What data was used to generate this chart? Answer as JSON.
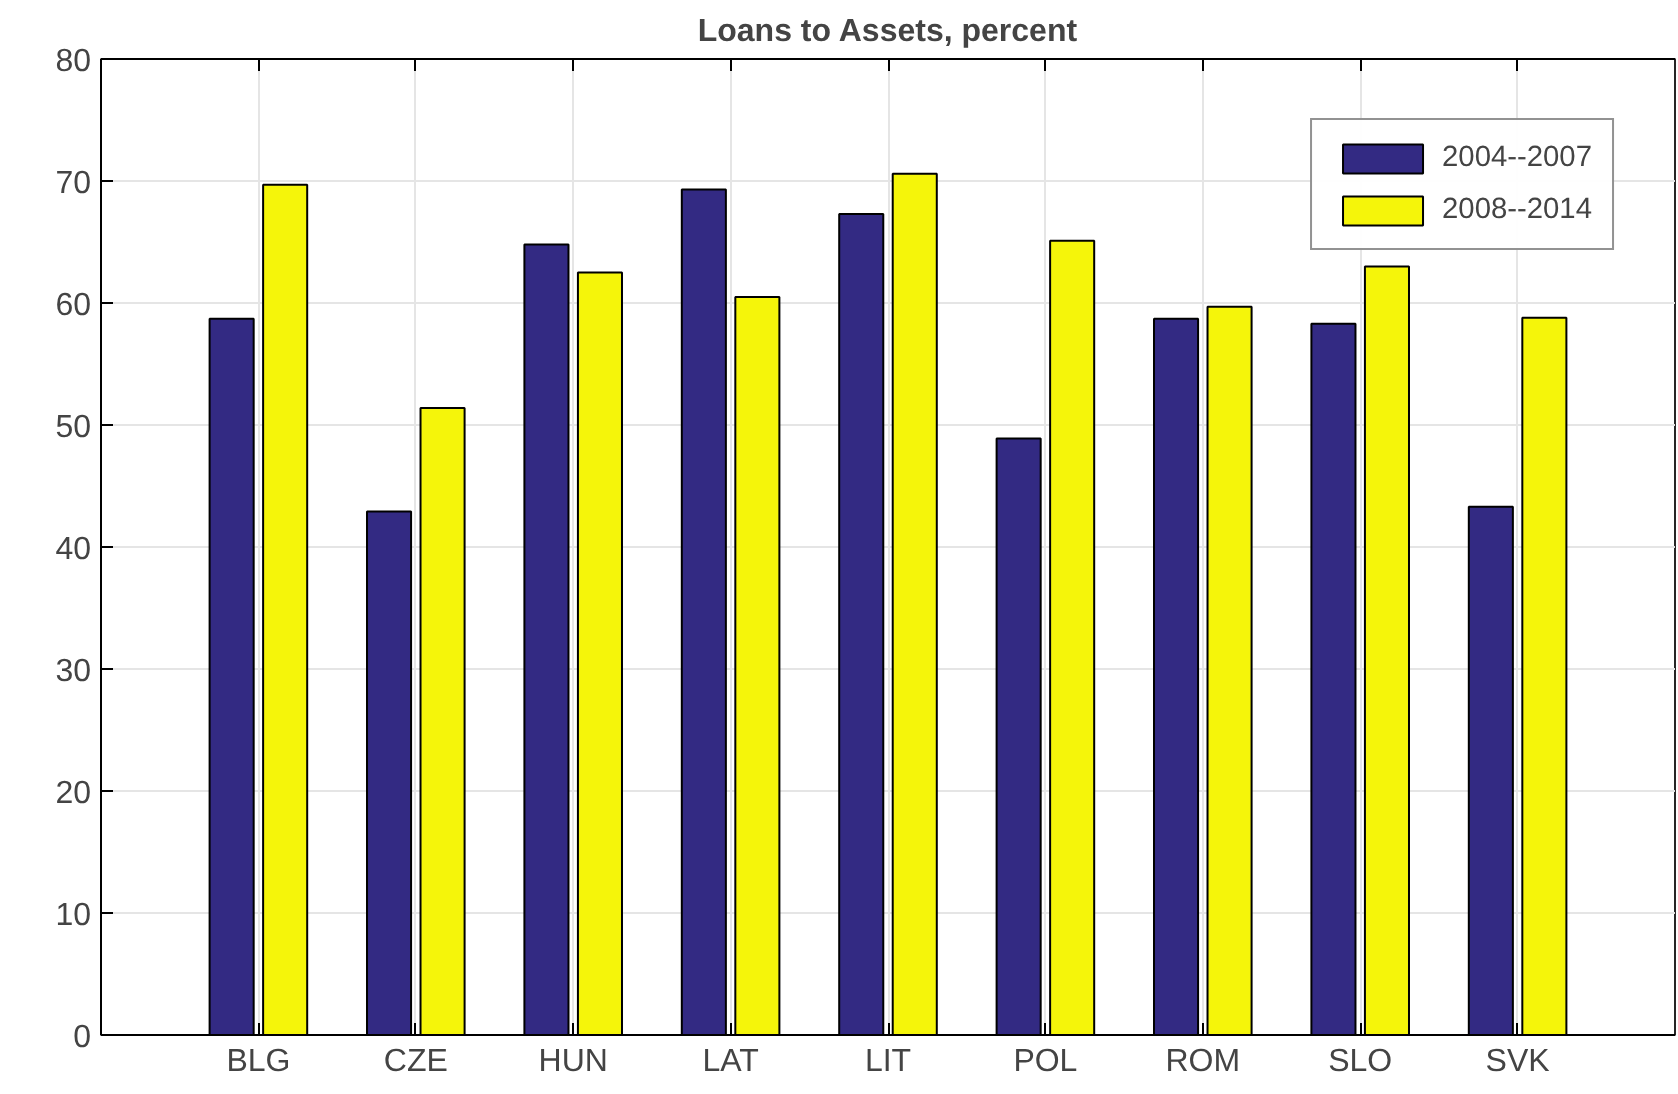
{
  "chart_data": {
    "type": "bar",
    "title": "Loans to Assets, percent",
    "categories": [
      "BLG",
      "CZE",
      "HUN",
      "LAT",
      "LIT",
      "POL",
      "ROM",
      "SLO",
      "SVK"
    ],
    "series": [
      {
        "name": "2004--2007",
        "color": "#332a83",
        "values": [
          58.7,
          42.9,
          64.8,
          69.3,
          67.3,
          48.9,
          58.7,
          58.3,
          43.3
        ]
      },
      {
        "name": "2008--2014",
        "color": "#f5f50a",
        "values": [
          69.7,
          51.4,
          62.5,
          60.5,
          70.6,
          65.1,
          59.7,
          63.0,
          58.8
        ]
      }
    ],
    "ylim": [
      0,
      80
    ],
    "yticks": [
      0,
      10,
      20,
      30,
      40,
      50,
      60,
      70,
      80
    ],
    "grid": true,
    "legend": "top right"
  }
}
